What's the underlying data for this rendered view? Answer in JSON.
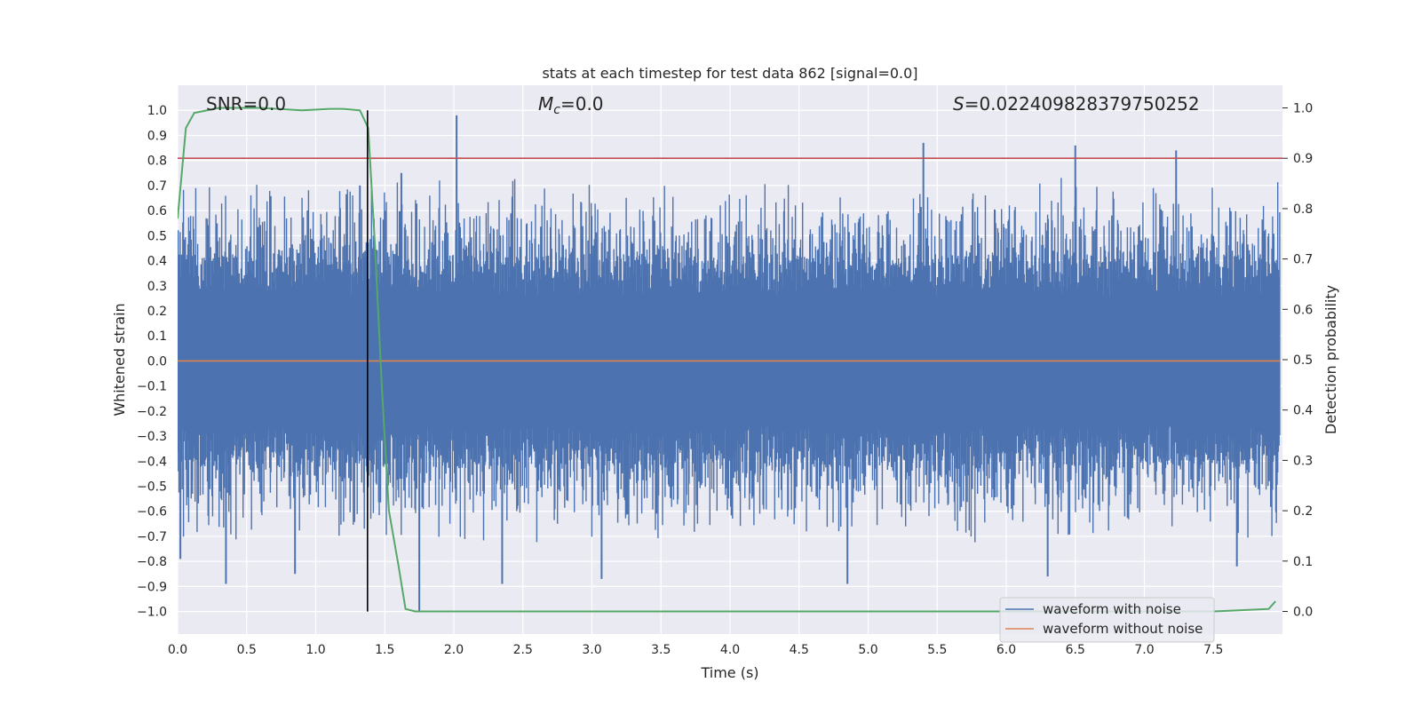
{
  "chart_data": {
    "type": "line",
    "title": "stats at each timestep for test data 862 [signal=0.0]",
    "xlabel": "Time (s)",
    "ylabel_left": "Whitened strain",
    "ylabel_right": "Detection probability",
    "xlim": [
      0.0,
      8.0
    ],
    "ylim_left": [
      -1.09,
      1.1
    ],
    "ylim_right": [
      -0.045,
      1.045
    ],
    "xticks": [
      "0.0",
      "0.5",
      "1.0",
      "1.5",
      "2.0",
      "2.5",
      "3.0",
      "3.5",
      "4.0",
      "4.5",
      "5.0",
      "5.5",
      "6.0",
      "6.5",
      "7.0",
      "7.5"
    ],
    "xtick_values": [
      0.0,
      0.5,
      1.0,
      1.5,
      2.0,
      2.5,
      3.0,
      3.5,
      4.0,
      4.5,
      5.0,
      5.5,
      6.0,
      6.5,
      7.0,
      7.5
    ],
    "yticks_left": [
      "1.0",
      "0.9",
      "0.8",
      "0.7",
      "0.6",
      "0.5",
      "0.4",
      "0.3",
      "0.2",
      "0.1",
      "0.0",
      "−0.1",
      "−0.2",
      "−0.3",
      "−0.4",
      "−0.5",
      "−0.6",
      "−0.7",
      "−0.8",
      "−0.9",
      "−1.0"
    ],
    "ytick_values_left": [
      1.0,
      0.9,
      0.8,
      0.7,
      0.6,
      0.5,
      0.4,
      0.3,
      0.2,
      0.1,
      0.0,
      -0.1,
      -0.2,
      -0.3,
      -0.4,
      -0.5,
      -0.6,
      -0.7,
      -0.8,
      -0.9,
      -1.0
    ],
    "yticks_right": [
      "1.0",
      "0.9",
      "0.8",
      "0.7",
      "0.6",
      "0.5",
      "0.4",
      "0.3",
      "0.2",
      "0.1",
      "0.0"
    ],
    "ytick_values_right": [
      1.0,
      0.9,
      0.8,
      0.7,
      0.6,
      0.5,
      0.4,
      0.3,
      0.2,
      0.1,
      0.0
    ],
    "annotations": {
      "snr": "SNR=0.0",
      "mc_symbol": "M",
      "mc_sub": "c",
      "mc_value": "=0.0",
      "s_symbol": "S",
      "s_value": "=0.022409828379750252"
    },
    "legend": {
      "placement": "lower right",
      "entries": [
        "waveform with noise",
        "waveform without noise"
      ]
    },
    "colors": {
      "noise": "#4c72b0",
      "clean": "#dd8452",
      "probability": "#55a868",
      "threshold": "#c44e52",
      "marker": "#000000",
      "background": "#eaeaf2",
      "grid": "#ffffff"
    },
    "series": [
      {
        "name": "waveform with noise",
        "axis": "left",
        "style": "dense noise, envelope mostly within ±0.4 with spikes",
        "spikes": [
          {
            "x": 0.02,
            "y": -0.79
          },
          {
            "x": 0.35,
            "y": -0.89
          },
          {
            "x": 0.85,
            "y": -0.85
          },
          {
            "x": 1.32,
            "y": 0.7
          },
          {
            "x": 1.62,
            "y": 0.75
          },
          {
            "x": 1.75,
            "y": -1.0
          },
          {
            "x": 2.02,
            "y": 0.98
          },
          {
            "x": 2.35,
            "y": -0.89
          },
          {
            "x": 3.07,
            "y": -0.87
          },
          {
            "x": 4.85,
            "y": -0.89
          },
          {
            "x": 5.4,
            "y": 0.87
          },
          {
            "x": 6.3,
            "y": -0.86
          },
          {
            "x": 6.5,
            "y": 0.86
          },
          {
            "x": 7.23,
            "y": 0.84
          },
          {
            "x": 7.67,
            "y": -0.82
          }
        ]
      },
      {
        "name": "waveform without noise",
        "axis": "left",
        "x": [
          0.0,
          7.98
        ],
        "y": [
          0.0,
          0.0
        ]
      },
      {
        "axis": "right",
        "x": [
          0.0,
          0.06,
          0.12,
          0.3,
          0.6,
          0.9,
          1.1,
          1.2,
          1.32,
          1.38,
          1.43,
          1.48,
          1.53,
          1.6,
          1.65,
          1.72,
          1.9,
          3.0,
          4.5,
          6.0,
          7.5,
          7.9,
          7.95
        ],
        "y": [
          0.78,
          0.96,
          0.99,
          1.0,
          1.0,
          0.995,
          0.998,
          0.998,
          0.995,
          0.96,
          0.72,
          0.44,
          0.2,
          0.09,
          0.005,
          0.0,
          0.0,
          0.0,
          0.0,
          0.0,
          0.0,
          0.005,
          0.02
        ]
      }
    ],
    "threshold_line": {
      "axis": "right",
      "y": 0.9
    },
    "marker_line": {
      "x": 1.375,
      "y_range": [
        -1.0,
        1.0
      ]
    }
  }
}
